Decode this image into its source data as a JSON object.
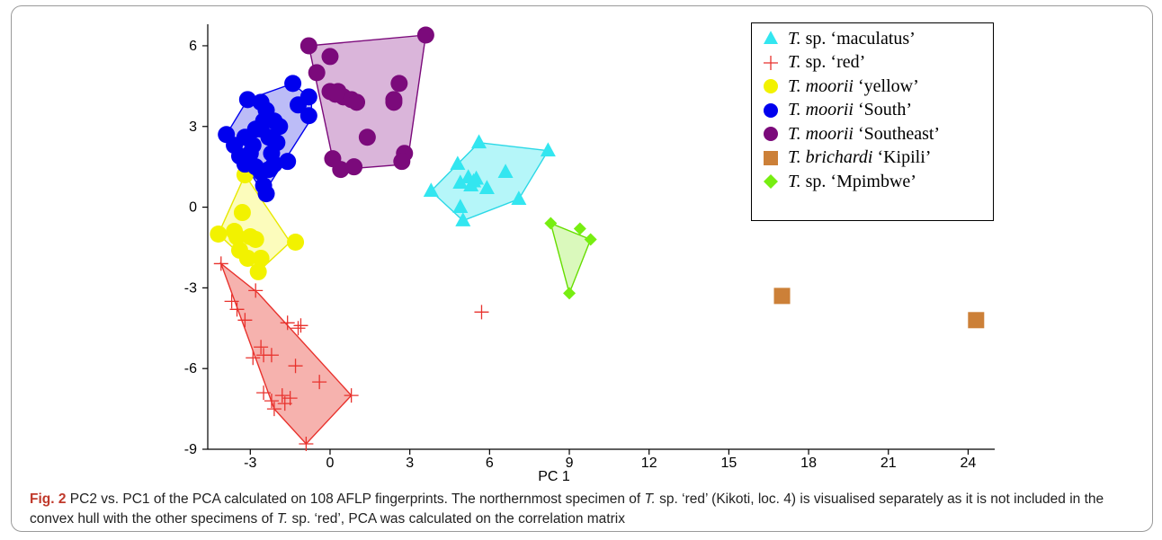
{
  "chart_data": {
    "type": "scatter",
    "xlabel": "PC 1",
    "ylabel": "",
    "xlim": [
      -4.6,
      25
    ],
    "ylim": [
      -9,
      6.8
    ],
    "x_ticks": [
      -3,
      0,
      3,
      6,
      9,
      12,
      15,
      18,
      21,
      24
    ],
    "y_ticks": [
      -9,
      -6,
      -3,
      0,
      3,
      6
    ],
    "x_tick_labels": [
      "-3",
      "0",
      "3",
      "6",
      "9",
      "12",
      "15",
      "18",
      "21",
      "24"
    ],
    "y_tick_labels": [
      "-9",
      "-6",
      "-3",
      "0",
      "3",
      "6"
    ],
    "grid": false,
    "legend_position": "top-right",
    "series": [
      {
        "name": "T. sp. ‘maculatus’",
        "name_italic": "T.",
        "name_rest": " sp. ‘maculatus’",
        "marker": "triangle",
        "color": "#33e6f0",
        "hull_fill": "#a8f4f8",
        "hull_stroke": "#2ad8e6",
        "hull": [
          [
            3.8,
            0.6
          ],
          [
            5.6,
            2.4
          ],
          [
            8.2,
            2.1
          ],
          [
            7.1,
            0.3
          ],
          [
            5.0,
            -0.5
          ]
        ],
        "points": [
          [
            3.8,
            0.6
          ],
          [
            4.8,
            1.6
          ],
          [
            4.9,
            0.9
          ],
          [
            5.2,
            1.1
          ],
          [
            5.4,
            0.95
          ],
          [
            5.5,
            1.05
          ],
          [
            5.6,
            2.4
          ],
          [
            5.9,
            0.7
          ],
          [
            4.9,
            0.0
          ],
          [
            5.0,
            -0.5
          ],
          [
            6.6,
            1.3
          ],
          [
            7.1,
            0.3
          ],
          [
            8.2,
            2.1
          ],
          [
            5.3,
            0.8
          ]
        ]
      },
      {
        "name": "T. sp. ‘red’",
        "name_italic": "T.",
        "name_rest": " sp. ‘red’",
        "marker": "plus",
        "color": "#e8322d",
        "hull_fill": "#f4a4a0",
        "hull_stroke": "#e8322d",
        "hull": [
          [
            -4.1,
            -2.1
          ],
          [
            -2.7,
            -3.2
          ],
          [
            0.8,
            -7.0
          ],
          [
            -0.9,
            -8.8
          ],
          [
            -2.1,
            -7.5
          ]
        ],
        "points": [
          [
            -4.1,
            -2.1
          ],
          [
            -3.7,
            -3.5
          ],
          [
            -3.5,
            -3.8
          ],
          [
            -3.2,
            -4.2
          ],
          [
            -2.8,
            -3.1
          ],
          [
            -2.6,
            -5.2
          ],
          [
            -2.5,
            -5.5
          ],
          [
            -2.9,
            -5.6
          ],
          [
            -2.2,
            -5.5
          ],
          [
            -2.5,
            -6.9
          ],
          [
            -2.2,
            -7.2
          ],
          [
            -2.1,
            -7.5
          ],
          [
            -1.7,
            -7.3
          ],
          [
            -1.5,
            -7.1
          ],
          [
            -1.6,
            -4.3
          ],
          [
            -1.2,
            -4.5
          ],
          [
            -1.1,
            -4.4
          ],
          [
            -1.3,
            -5.9
          ],
          [
            -0.9,
            -8.8
          ],
          [
            -0.4,
            -6.5
          ],
          [
            0.8,
            -7.0
          ],
          [
            -1.8,
            -7.0
          ],
          [
            5.7,
            -3.9
          ]
        ]
      },
      {
        "name": "T. moorii ‘yellow’",
        "name_italic": "T. moorii",
        "name_rest": " ‘yellow’",
        "marker": "circle",
        "color": "#f2f200",
        "hull_fill": "#fbfbb0",
        "hull_stroke": "#e8e800",
        "hull": [
          [
            -3.2,
            1.2
          ],
          [
            -1.5,
            -1.3
          ],
          [
            -2.7,
            -2.4
          ],
          [
            -4.2,
            -1.0
          ]
        ],
        "points": [
          [
            -3.2,
            1.2
          ],
          [
            -3.6,
            -0.9
          ],
          [
            -3.3,
            -0.2
          ],
          [
            -3.5,
            -1.1
          ],
          [
            -3.0,
            -1.1
          ],
          [
            -3.4,
            -1.6
          ],
          [
            -3.1,
            -1.9
          ],
          [
            -2.8,
            -1.2
          ],
          [
            -2.6,
            -1.9
          ],
          [
            -4.2,
            -1.0
          ],
          [
            -2.7,
            -2.4
          ],
          [
            -1.3,
            -1.3
          ]
        ]
      },
      {
        "name": "T. moorii ‘South’",
        "name_italic": "T. moorii",
        "name_rest": " ‘South’",
        "marker": "circle",
        "color": "#0000ee",
        "hull_fill": "#b0b0f6",
        "hull_stroke": "#0000ee",
        "hull": [
          [
            -3.1,
            4.0
          ],
          [
            -1.4,
            4.6
          ],
          [
            -0.7,
            4.0
          ],
          [
            -0.7,
            3.3
          ],
          [
            -2.5,
            0.5
          ],
          [
            -3.9,
            2.7
          ]
        ],
        "points": [
          [
            -3.1,
            4.0
          ],
          [
            -2.6,
            3.9
          ],
          [
            -2.4,
            3.6
          ],
          [
            -2.5,
            3.2
          ],
          [
            -3.6,
            2.3
          ],
          [
            -3.9,
            2.7
          ],
          [
            -3.4,
            1.9
          ],
          [
            -3.2,
            2.6
          ],
          [
            -2.9,
            2.3
          ],
          [
            -2.6,
            2.9
          ],
          [
            -2.3,
            2.6
          ],
          [
            -2.2,
            2.0
          ],
          [
            -2.8,
            1.5
          ],
          [
            -3.2,
            1.6
          ],
          [
            -2.6,
            1.3
          ],
          [
            -2.3,
            1.4
          ],
          [
            -2.5,
            0.8
          ],
          [
            -2.4,
            0.5
          ],
          [
            -2.1,
            1.6
          ],
          [
            -1.6,
            1.7
          ],
          [
            -1.4,
            4.6
          ],
          [
            -1.2,
            3.8
          ],
          [
            -0.8,
            4.1
          ],
          [
            -0.8,
            3.4
          ],
          [
            -2.0,
            2.4
          ],
          [
            -2.1,
            3.2
          ],
          [
            -1.9,
            3.0
          ],
          [
            -2.8,
            2.9
          ],
          [
            -3.0,
            2.0
          ]
        ]
      },
      {
        "name": "T. moorii ‘Southeast’",
        "name_italic": "T. moorii",
        "name_rest": " ‘Southeast’",
        "marker": "circle",
        "color": "#7b0a7b",
        "hull_fill": "#d4a8d4",
        "hull_stroke": "#7b0a7b",
        "hull": [
          [
            -0.8,
            6.0
          ],
          [
            3.6,
            6.4
          ],
          [
            2.9,
            1.6
          ],
          [
            0.4,
            1.4
          ],
          [
            0.1,
            1.8
          ]
        ],
        "points": [
          [
            -0.8,
            6.0
          ],
          [
            -0.5,
            5.0
          ],
          [
            0.0,
            5.6
          ],
          [
            0.0,
            4.3
          ],
          [
            0.3,
            4.3
          ],
          [
            0.5,
            4.1
          ],
          [
            0.2,
            4.2
          ],
          [
            0.8,
            4.0
          ],
          [
            1.0,
            3.9
          ],
          [
            2.4,
            4.0
          ],
          [
            2.6,
            4.6
          ],
          [
            1.4,
            2.6
          ],
          [
            0.4,
            1.4
          ],
          [
            0.1,
            1.8
          ],
          [
            0.9,
            1.5
          ],
          [
            2.8,
            2.0
          ],
          [
            2.7,
            1.7
          ],
          [
            3.6,
            6.4
          ],
          [
            2.4,
            3.9
          ]
        ]
      },
      {
        "name": "T. brichardi ‘Kipili’",
        "name_italic": "T. brichardi",
        "name_rest": " ‘Kipili’",
        "marker": "square",
        "color": "#cc8038",
        "points": [
          [
            17.0,
            -3.3
          ],
          [
            24.3,
            -4.2
          ]
        ]
      },
      {
        "name": "T. sp. ‘Mpimbwe’",
        "name_italic": "T.",
        "name_rest": " sp. ‘Mpimbwe’",
        "marker": "diamond",
        "color": "#77ee11",
        "hull_fill": "#d3f8b0",
        "hull_stroke": "#66dd00",
        "hull": [
          [
            8.3,
            -0.6
          ],
          [
            9.8,
            -1.2
          ],
          [
            9.0,
            -3.2
          ]
        ],
        "points": [
          [
            8.3,
            -0.6
          ],
          [
            9.4,
            -0.8
          ],
          [
            9.8,
            -1.2
          ],
          [
            9.0,
            -3.2
          ]
        ]
      }
    ]
  },
  "caption": {
    "label": "Fig. 2",
    "segments": [
      {
        "t": " PC2 vs. PC1 of the PCA calculated on 108 AFLP fingerprints. The northernmost specimen of ",
        "i": false
      },
      {
        "t": "T.",
        "i": true
      },
      {
        "t": " sp. ‘red’ (Kikoti, loc. 4) is visualised separately as it is not included in the convex hull with the other specimens of ",
        "i": false
      },
      {
        "t": "T.",
        "i": true
      },
      {
        "t": " sp. ‘red’, PCA was calculated on the correlation matrix",
        "i": false
      }
    ]
  }
}
